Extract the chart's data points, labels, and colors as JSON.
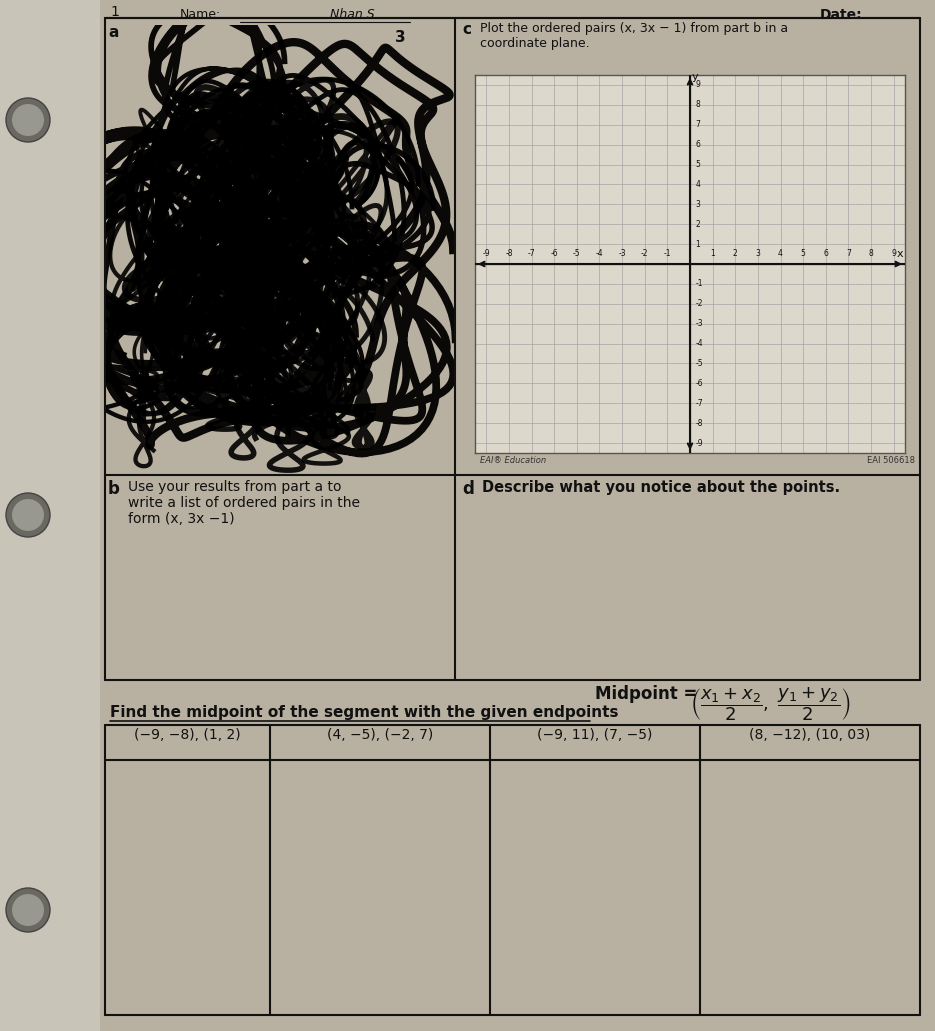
{
  "bg_color": "#b8b0a0",
  "paper_color": "#e8e4dc",
  "paper_color2": "#ddd8cc",
  "black": "#111111",
  "dark_gray": "#333333",
  "title_text_c": "Plot the ordered pairs (x, 3x − 1) from part b in a\ncoordinate plane.",
  "date_label": "Date:",
  "name_label": "Name:",
  "name_written": "Nhan S.",
  "text_b": "Use your results from part a to\nwrite a list of ordered pairs in the\nform (x, 3x −1)",
  "text_d": "Describe what you notice about the points.",
  "find_midpoint_text": "Find the midpoint of the segment with the given endpoints",
  "endpoint_cols": [
    "(−9, −8), (1, 2)",
    "(4, −5), (−2, 7)",
    "(−9, 11), (7, −5)",
    "(8, −12), (10, 03)"
  ],
  "eai_left": "EAI® Education",
  "eai_right": "EAI 506618",
  "grid_range": 9,
  "axis_color": "#111111",
  "grid_color": "#999999",
  "label_a": "a",
  "label_b": "b",
  "label_c": "c",
  "label_d": "d",
  "num_3": "3",
  "hole_color": "#888888",
  "hole_color2": "#555555"
}
